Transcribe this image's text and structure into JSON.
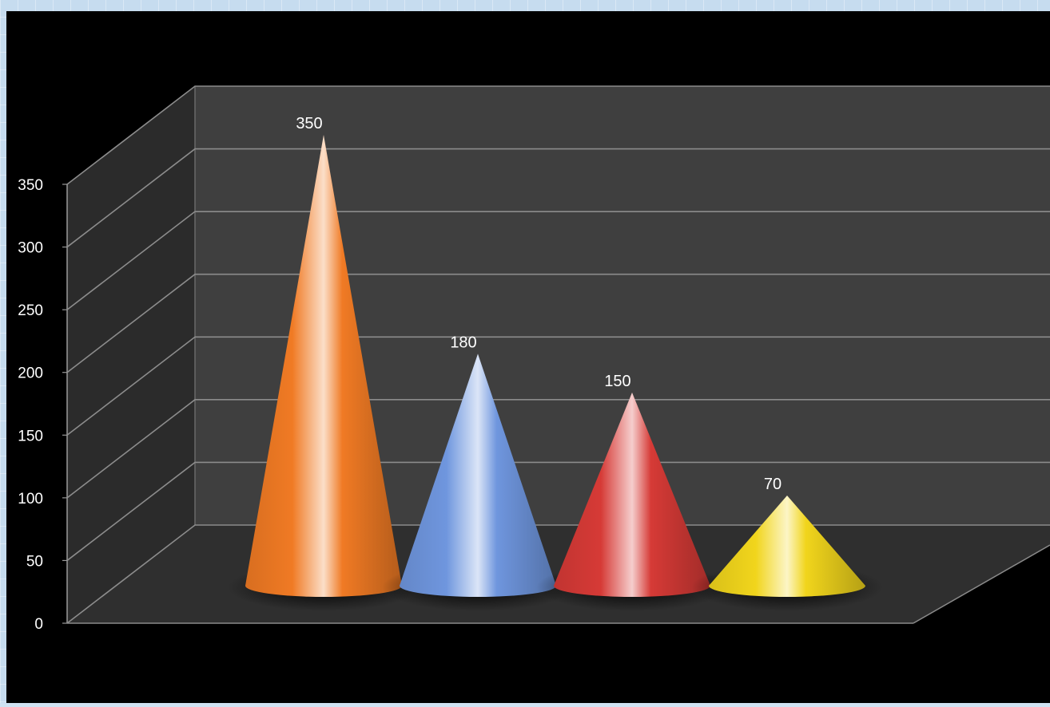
{
  "chart_data": {
    "type": "bar",
    "style": "3d-cone",
    "categories": [
      "",
      "",
      "",
      ""
    ],
    "values": [
      350,
      180,
      150,
      70
    ],
    "data_labels": [
      "350",
      "180",
      "150",
      "70"
    ],
    "colors": [
      "#f07a24",
      "#6f96de",
      "#d63a36",
      "#f1d51c"
    ],
    "title": "",
    "xlabel": "",
    "ylabel": "",
    "ylim": [
      0,
      350
    ],
    "y_ticks": [
      "0",
      "50",
      "100",
      "150",
      "200",
      "250",
      "300",
      "350"
    ],
    "grid": true,
    "legend": "none",
    "background": "#000000",
    "wall_color": "#3f3f3f"
  }
}
